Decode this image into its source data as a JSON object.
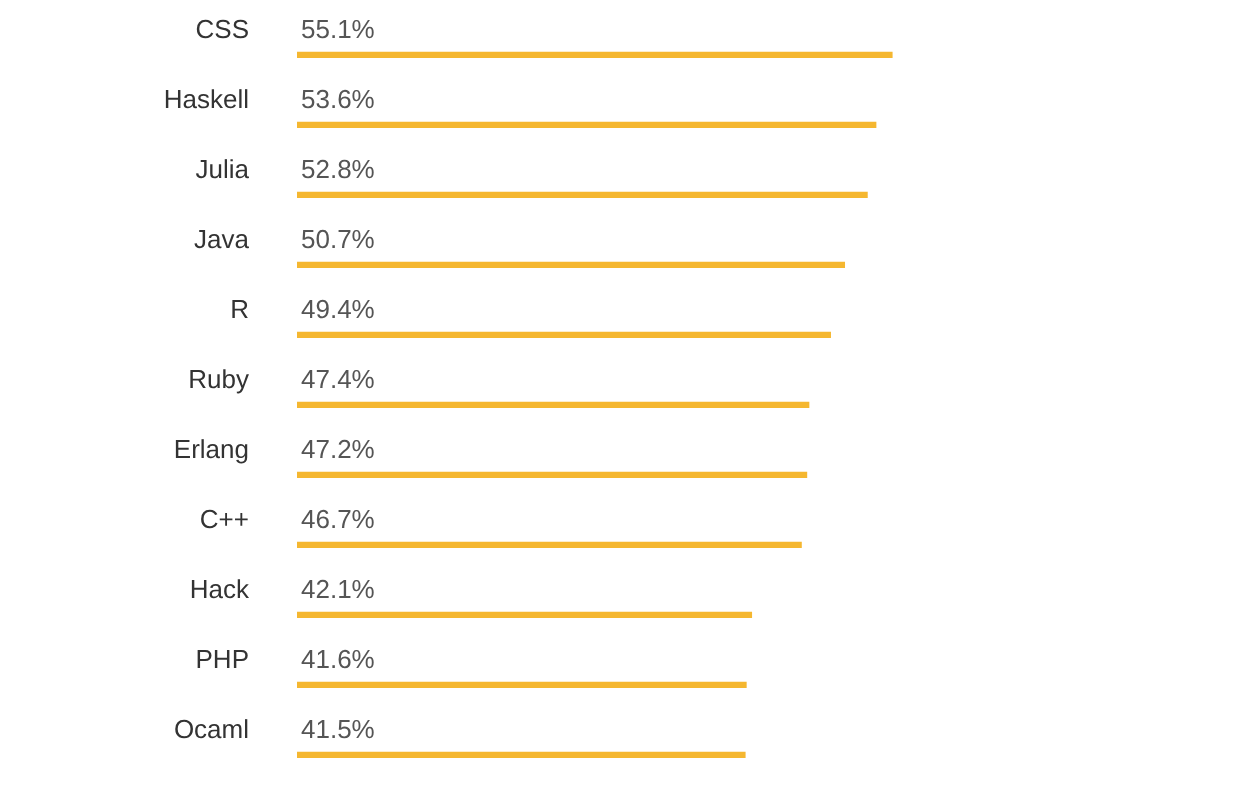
{
  "chart_data": {
    "type": "bar",
    "orientation": "horizontal",
    "categories": [
      "CSS",
      "Haskell",
      "Julia",
      "Java",
      "R",
      "Ruby",
      "Erlang",
      "C++",
      "Hack",
      "PHP",
      "Ocaml"
    ],
    "values": [
      55.1,
      53.6,
      52.8,
      50.7,
      49.4,
      47.4,
      47.2,
      46.7,
      42.1,
      41.6,
      41.5
    ],
    "color": "#f5b730",
    "value_labels": [
      "55.1%",
      "53.6%",
      "52.8%",
      "50.7%",
      "49.4%",
      "47.4%",
      "47.2%",
      "46.7%",
      "42.1%",
      "41.6%",
      "41.5%"
    ]
  }
}
